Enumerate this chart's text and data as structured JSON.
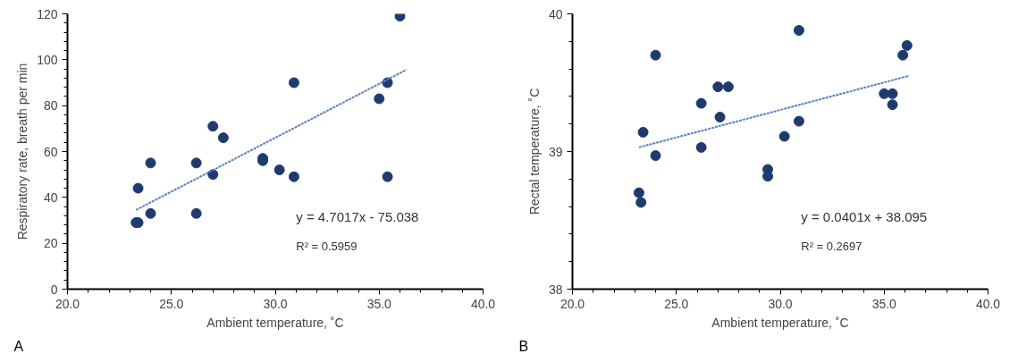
{
  "chart_data": [
    {
      "type": "scatter",
      "xlabel": "Ambient temperature, ˚C",
      "ylabel": "Respiratory rate, breath per min",
      "xlim": [
        20,
        40
      ],
      "ylim": [
        0,
        120
      ],
      "xticks": [
        {
          "value": 20,
          "label": "20.0"
        },
        {
          "value": 25,
          "label": "25.0"
        },
        {
          "value": 30,
          "label": "30.0"
        },
        {
          "value": 35,
          "label": "35.0"
        },
        {
          "value": 40,
          "label": "40.0"
        }
      ],
      "yticks": [
        0,
        20,
        40,
        60,
        80,
        100,
        120
      ],
      "grid": false,
      "marker": "circle",
      "x": [
        23.3,
        23.4,
        23.4,
        24.0,
        24.0,
        26.2,
        26.2,
        27.0,
        27.0,
        27.5,
        29.4,
        29.4,
        30.2,
        30.9,
        30.9,
        35.0,
        35.4,
        35.4,
        36.0
      ],
      "series": [
        {
          "color": "#1f3b6e",
          "values": [
            29,
            29,
            44,
            33,
            55,
            33,
            55,
            71,
            50,
            66,
            56,
            57,
            52,
            90,
            49,
            83,
            90,
            49,
            119
          ]
        },
        {
          "type": "line",
          "color": "#5b7fc0",
          "line_style": "dotted",
          "marker": "none",
          "x": [
            23.3,
            36.3
          ],
          "values": [
            34.5,
            95.6
          ]
        }
      ],
      "annotations": [
        "y = 4.7017x - 75.038",
        "R² = 0.5959",
        "A"
      ]
    },
    {
      "type": "scatter",
      "xlabel": "Ambient temperature, ˚C",
      "ylabel": "Rectal temperature, ˚C",
      "xlim": [
        20,
        40
      ],
      "ylim": [
        38,
        40
      ],
      "xticks": [
        {
          "value": 20,
          "label": "20.0"
        },
        {
          "value": 25,
          "label": "25.0"
        },
        {
          "value": 30,
          "label": "30.0"
        },
        {
          "value": 35,
          "label": "35.0"
        },
        {
          "value": 40,
          "label": "40.0"
        }
      ],
      "yticks": [
        38,
        39,
        40
      ],
      "grid": false,
      "marker": "circle",
      "x": [
        23.2,
        23.3,
        23.4,
        24.0,
        24.0,
        26.2,
        26.2,
        27.0,
        27.1,
        27.5,
        29.4,
        29.4,
        30.2,
        30.9,
        30.9,
        35.0,
        35.4,
        35.4,
        35.9,
        36.1
      ],
      "series": [
        {
          "color": "#1f3b6e",
          "values": [
            38.7,
            38.63,
            39.14,
            39.7,
            38.97,
            39.35,
            39.03,
            39.47,
            39.25,
            39.47,
            38.87,
            38.82,
            39.11,
            39.88,
            39.22,
            39.42,
            39.42,
            39.34,
            39.7,
            39.77
          ]
        },
        {
          "type": "line",
          "color": "#5b7fc0",
          "line_style": "dotted",
          "marker": "none",
          "x": [
            23.2,
            36.2
          ],
          "values": [
            39.03,
            39.55
          ]
        }
      ],
      "annotations": [
        "y = 0.0401x + 38.095",
        "R² = 0.2697",
        "B"
      ]
    }
  ]
}
